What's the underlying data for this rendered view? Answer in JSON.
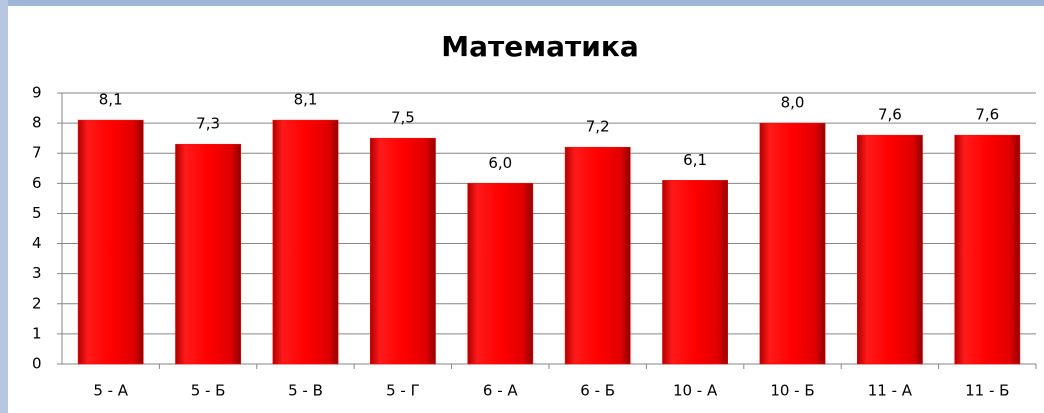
{
  "chart_data": {
    "type": "bar",
    "title": "Математика",
    "categories": [
      "5 - А",
      "5 - Б",
      "5 - В",
      "5 - Г",
      "6 - А",
      "6 - Б",
      "10 - А",
      "10 - Б",
      "11 - А",
      "11 - Б"
    ],
    "values": [
      8.1,
      7.3,
      8.1,
      7.5,
      6.0,
      7.2,
      6.1,
      8.0,
      7.6,
      7.6
    ],
    "value_labels": [
      "8,1",
      "7,3",
      "8,1",
      "7,5",
      "6,0",
      "7,2",
      "6,1",
      "8,0",
      "7,6",
      "7,6"
    ],
    "color": "#ff0000",
    "ylim": [
      0,
      9
    ],
    "yticks": [
      0,
      1,
      2,
      3,
      4,
      5,
      6,
      7,
      8,
      9
    ],
    "grid": true
  }
}
